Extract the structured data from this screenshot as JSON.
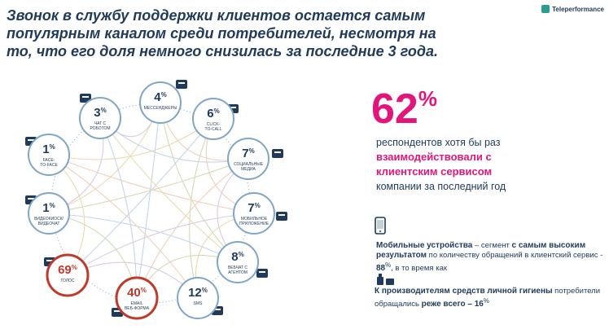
{
  "headline": "Звонок в службу поддержки клиентов остается самым популярным каналом среди потребителей, несмотря на то, что его доля немного снизилась за последние 3 года.",
  "logo": "Teleperformance",
  "channels": [
    {
      "value": "4",
      "label": [
        "МЕССЕНДЖЕРЫ"
      ],
      "highlight": false,
      "icon": "chat-bubble-icon"
    },
    {
      "value": "6",
      "label": [
        "CLICK-",
        "TO-CALL"
      ],
      "highlight": false,
      "icon": "click-cursor-icon"
    },
    {
      "value": "7",
      "label": [
        "СОЦИАЛЬНЫЕ",
        "МЕДИА"
      ],
      "highlight": false,
      "icon": "social-network-icon"
    },
    {
      "value": "7",
      "label": [
        "МОБИЛЬНОЕ",
        "ПРИЛОЖЕНИЕ"
      ],
      "highlight": false,
      "icon": "mobile-app-icon"
    },
    {
      "value": "8",
      "label": [
        "ВЕБЧАТ С",
        "АГЕНТОМ"
      ],
      "highlight": false,
      "icon": "webchat-agent-icon"
    },
    {
      "value": "12",
      "label": [
        "SMS"
      ],
      "highlight": false,
      "icon": "sms-phone-icon"
    },
    {
      "value": "40",
      "label": [
        "EMAIL",
        "ВЕБ-ФОРМА"
      ],
      "highlight": true,
      "icon": "at-sign-icon"
    },
    {
      "value": "69",
      "label": [
        "ГОЛОС"
      ],
      "highlight": true,
      "icon": "headset-icon"
    },
    {
      "value": "1",
      "label": [
        "ВИДЕОКИОСК/",
        "ВИДЕОЧАТ"
      ],
      "highlight": false,
      "icon": "video-kiosk-icon"
    },
    {
      "value": "1",
      "label": [
        "FACE-",
        "TO-FACE"
      ],
      "highlight": false,
      "icon": "face-to-face-icon"
    },
    {
      "value": "3",
      "label": [
        "ЧАТ С",
        "РОБОТОМ"
      ],
      "highlight": false,
      "icon": "robot-chat-icon"
    }
  ],
  "percent_sign": "%",
  "stat": {
    "value": "62",
    "sign": "%",
    "line1": "респондентов хотя бы раз",
    "hl1": "взаимодействовали с",
    "hl2": "клиентским сервисом",
    "line2": "компании за последний год"
  },
  "mobile": {
    "bold1": "Мобильные устройства",
    "t1": " – сегмент ",
    "bold2": "с самым высоким результатом",
    "t2": " по количеству обращений в клиентский сервис - ",
    "bold3": "88",
    "sup": "%",
    "t3": ", в то время как"
  },
  "hygiene": {
    "bold1": "К производителям средств личной гигиены",
    "t1": " потребители обращались ",
    "bold2": "реже всего – 16",
    "sup": "%"
  },
  "colors": {
    "navy": "#1f3a5c",
    "magenta": "#e3157a",
    "highlight_ring": "#c0392b",
    "node_ring": "#7fa6c9",
    "curve_palette": [
      "#f3c7b0",
      "#c9d7a7",
      "#b9cfe6",
      "#e9d4a2",
      "#d7c0de"
    ]
  }
}
